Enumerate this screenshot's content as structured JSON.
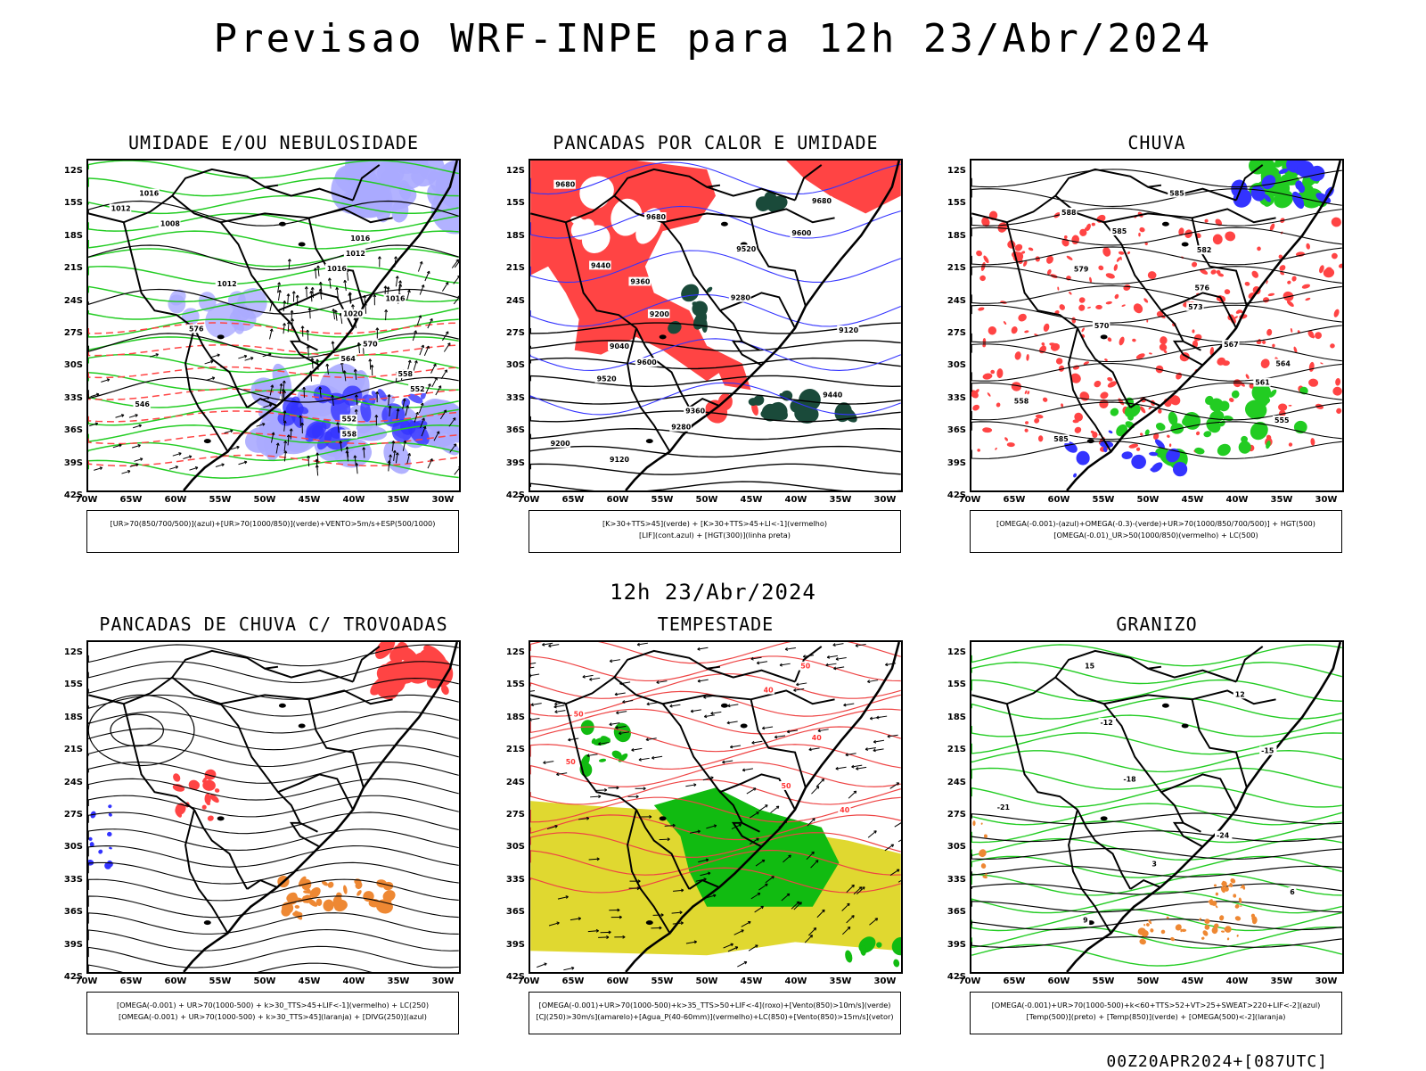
{
  "header": {
    "title": "Previsao WRF-INPE  para 12h 23/Abr/2024"
  },
  "subheader": {
    "title": "12h 23/Abr/2024"
  },
  "footer": {
    "text": "00Z20APR2024+[087UTC]"
  },
  "lat_labels": [
    "12S",
    "15S",
    "18S",
    "21S",
    "24S",
    "27S",
    "30S",
    "33S",
    "36S",
    "39S",
    "42S"
  ],
  "lon_labels": [
    "70W",
    "65W",
    "60W",
    "55W",
    "50W",
    "45W",
    "40W",
    "35W",
    "30W"
  ],
  "panels": [
    {
      "title": "UMIDADE E/OU NEBULOSIDADE",
      "legend": [
        "[UR>70(850/700/500)](azul)+[UR>70(1000/850)](verde)+VENTO>5m/s+ESP(500/1000)",
        ""
      ],
      "contour_labels": [
        "1016",
        "1012",
        "1008",
        "1016",
        "1012",
        "1016",
        "1012",
        "1016",
        "1020",
        "576",
        "570",
        "564",
        "558",
        "552",
        "546",
        "552",
        "558"
      ]
    },
    {
      "title": "PANCADAS POR CALOR E UMIDADE",
      "legend": [
        "[K>30+TTS>45](verde) + [K>30+TTS>45+LI<-1](vermelho)",
        "[LIF](cont.azul) + [HGT(300)](linha preta)"
      ],
      "contour_labels": [
        "9680",
        "9680",
        "9680",
        "9600",
        "9520",
        "9440",
        "9360",
        "9280",
        "9200",
        "9120",
        "9040",
        "9600",
        "9520",
        "9440",
        "9360",
        "9280",
        "9200",
        "9120"
      ]
    },
    {
      "title": "CHUVA",
      "legend": [
        "[OMEGA(-0.001)-(azul)+OMEGA(-0.3)-(verde)+UR>70(1000/850/700/500)] + HGT(500)",
        "[OMEGA(-0.01)_UR>50(1000/850)(vermelho) + LC(500)"
      ],
      "contour_labels": [
        "585",
        "588",
        "585",
        "582",
        "579",
        "576",
        "573",
        "570",
        "567",
        "564",
        "561",
        "558",
        "555",
        "585"
      ]
    },
    {
      "title": "PANCADAS DE CHUVA C/ TROVOADAS",
      "legend": [
        "[OMEGA(-0.001) + UR>70(1000-500) + k>30_TTS>45+LIF<-1](vermelho) + LC(250)",
        "[OMEGA(-0.001) + UR>70(1000-500) + k>30_TTS>45](laranja) + [DIVG(250)](azul)"
      ],
      "contour_labels": []
    },
    {
      "title": "TEMPESTADE",
      "legend": [
        "[OMEGA(-0.001)+UR>70(1000-500)+k>35_TTS>50+LIF<-4](roxo)+[Vento(850)>10m/s](verde)",
        "[CJ(250)>30m/s](amarelo)+[Agua_P(40-60mm)](vermelho)+LC(850)+[Vento(850)>15m/s](vetor)"
      ],
      "contour_labels": [
        "50",
        "40",
        "50",
        "40",
        "50",
        "50",
        "40"
      ]
    },
    {
      "title": "GRANIZO",
      "legend": [
        "[OMEGA(-0.001)+UR>70(1000-500)+k<60+TTS>52+VT>25+SWEAT>220+LIF<-2](azul)",
        "[Temp(500)](preto) + [Temp(850)](verde) + [OMEGA(500)<-2](laranja)"
      ],
      "contour_labels": [
        "15",
        "12",
        "-12",
        "-15",
        "-18",
        "-21",
        "-24",
        "3",
        "6",
        "9"
      ]
    }
  ],
  "colors": {
    "blue": "#3333ff",
    "green": "#22cc22",
    "red": "#ff4444",
    "orange": "#ee8833",
    "yellow": "#e0d830",
    "darkgreen": "#1a4a3a",
    "lavender": "#aaaaff"
  }
}
